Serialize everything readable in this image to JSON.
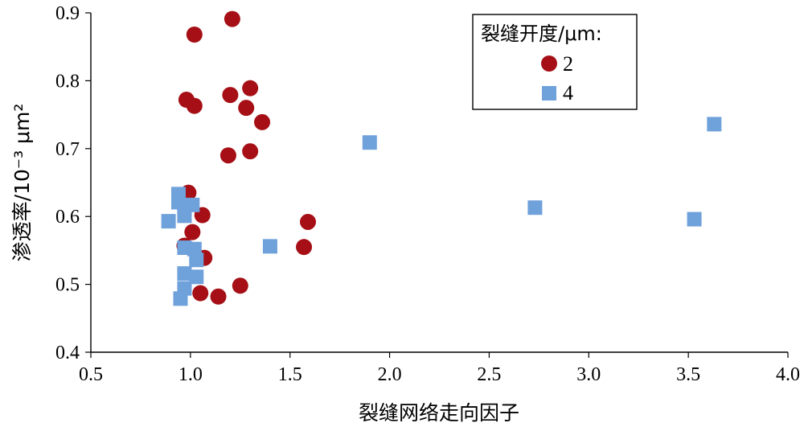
{
  "chart_data": {
    "type": "scatter",
    "xlabel": "裂缝网络走向因子",
    "ylabel": "渗透率/10⁻³ μm²",
    "xlim": [
      0.5,
      4.0
    ],
    "ylim": [
      0.4,
      0.9
    ],
    "xticks": [
      "0.5",
      "1.0",
      "1.5",
      "2.0",
      "2.5",
      "3.0",
      "3.5",
      "4.0"
    ],
    "yticks": [
      "0.4",
      "0.5",
      "0.6",
      "0.7",
      "0.8",
      "0.9"
    ],
    "legend": {
      "title": "裂缝开度/μm:",
      "position": "top-right"
    },
    "series": [
      {
        "name": "2",
        "marker": "circle",
        "color": "#A50F15",
        "points": [
          [
            1.21,
            0.891
          ],
          [
            1.02,
            0.868
          ],
          [
            1.3,
            0.789
          ],
          [
            1.2,
            0.779
          ],
          [
            0.98,
            0.772
          ],
          [
            1.02,
            0.763
          ],
          [
            1.28,
            0.76
          ],
          [
            1.36,
            0.739
          ],
          [
            1.3,
            0.696
          ],
          [
            1.19,
            0.69
          ],
          [
            0.99,
            0.635
          ],
          [
            1.06,
            0.602
          ],
          [
            1.59,
            0.592
          ],
          [
            1.01,
            0.577
          ],
          [
            1.57,
            0.555
          ],
          [
            0.97,
            0.557
          ],
          [
            1.07,
            0.539
          ],
          [
            1.25,
            0.498
          ],
          [
            1.05,
            0.487
          ],
          [
            1.14,
            0.482
          ]
        ]
      },
      {
        "name": "4",
        "marker": "square",
        "color": "#6FA1DB",
        "points": [
          [
            0.94,
            0.633
          ],
          [
            0.94,
            0.621
          ],
          [
            1.01,
            0.617
          ],
          [
            0.97,
            0.612
          ],
          [
            0.97,
            0.601
          ],
          [
            0.89,
            0.593
          ],
          [
            1.9,
            0.709
          ],
          [
            2.73,
            0.613
          ],
          [
            3.53,
            0.596
          ],
          [
            3.63,
            0.736
          ],
          [
            1.4,
            0.556
          ],
          [
            0.97,
            0.554
          ],
          [
            1.02,
            0.552
          ],
          [
            1.03,
            0.536
          ],
          [
            0.97,
            0.516
          ],
          [
            1.03,
            0.511
          ],
          [
            0.97,
            0.494
          ],
          [
            0.95,
            0.479
          ]
        ]
      }
    ]
  }
}
